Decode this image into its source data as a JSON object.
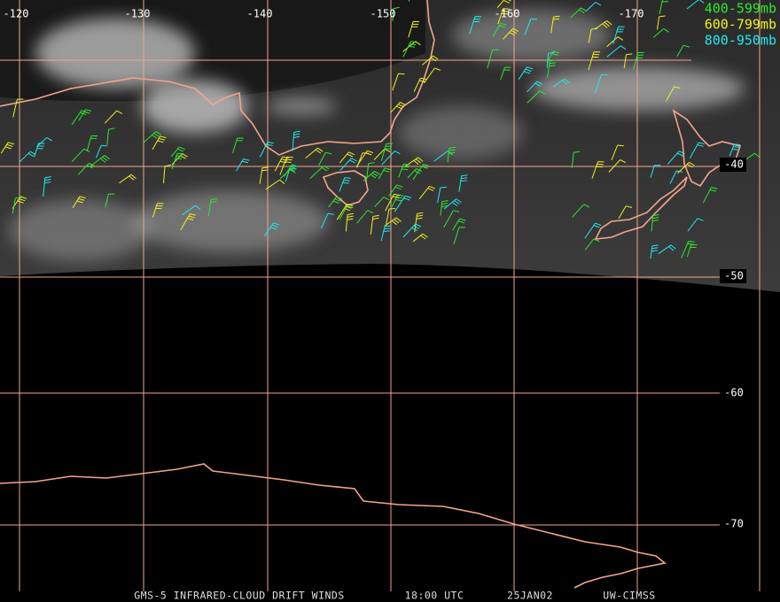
{
  "map": {
    "longitude_labels": [
      "-120",
      "-130",
      "-140",
      "-150",
      "-160",
      "-170"
    ],
    "latitude_labels": [
      "-40",
      "-50",
      "-60",
      "-70"
    ],
    "legend": [
      {
        "label": "400-599mb",
        "color": "#2ee62e"
      },
      {
        "label": "600-799mb",
        "color": "#f0f020"
      },
      {
        "label": "800-950mb",
        "color": "#20e8f0"
      }
    ],
    "footer": [
      "GMS-5 INFRARED-CLOUD DRIFT WINDS",
      "18:00 UTC",
      "25JAN02",
      "UW-CIMSS"
    ]
  }
}
